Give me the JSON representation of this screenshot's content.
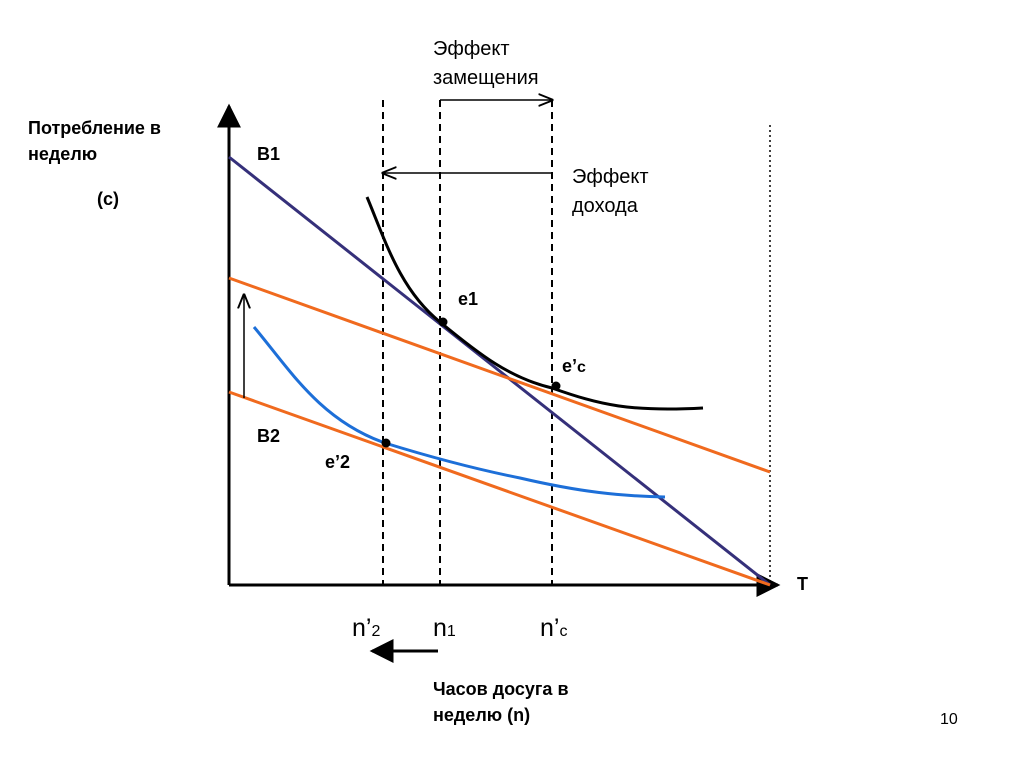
{
  "y_axis_label": {
    "lines": [
      "Потребление в",
      "неделю"
    ],
    "symbol": "(с)"
  },
  "x_axis_label": {
    "lines": [
      "Часов досуга в",
      "неделю (n)"
    ]
  },
  "x_axis_end": "T",
  "lines": {
    "b1": "B1",
    "b2": "B2"
  },
  "points": {
    "e1": "e1",
    "ec": {
      "main": "e’",
      "sub": "c"
    },
    "e2": "e’2"
  },
  "x_marks": [
    {
      "main": "n’",
      "sub": "2"
    },
    {
      "main": "n",
      "sub": "1"
    },
    {
      "main": "n’",
      "sub": "c"
    }
  ],
  "effects": {
    "substitution": [
      "Эффект",
      "замещения"
    ],
    "income": [
      "Эффект",
      "дохода"
    ]
  },
  "page_number": "10"
}
